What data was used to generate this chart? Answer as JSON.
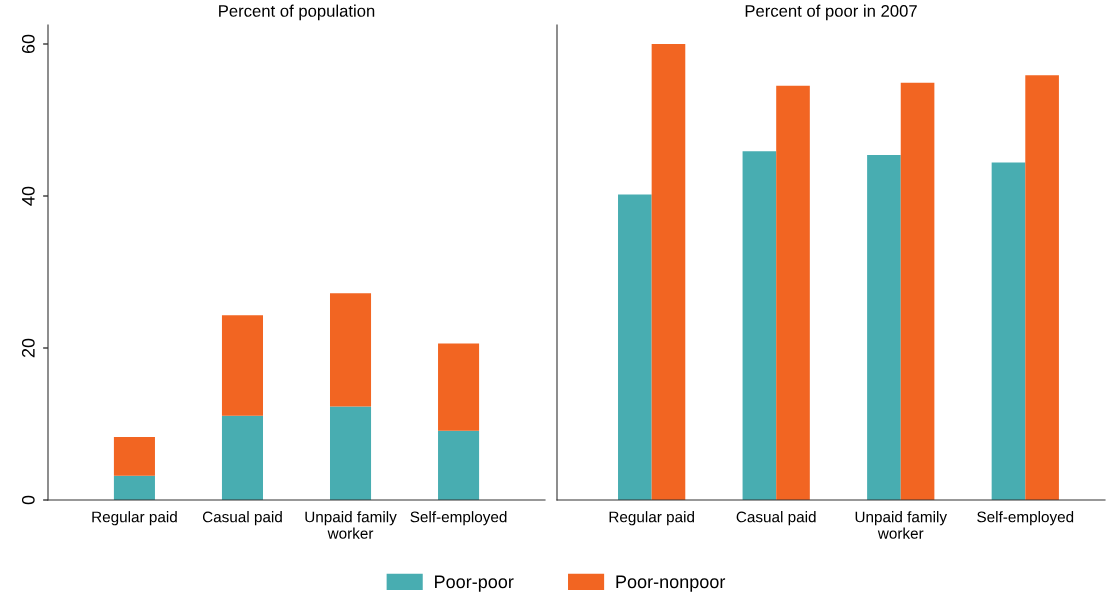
{
  "chart_data": [
    {
      "type": "bar",
      "title": "Percent of population",
      "stacked": true,
      "categories": [
        "Regular paid",
        "Casual paid",
        "Unpaid family\nworker",
        "Self-employed"
      ],
      "series": [
        {
          "name": "Poor-poor",
          "color": "#48adb1",
          "values": [
            3.2,
            11.1,
            12.3,
            9.1
          ]
        },
        {
          "name": "Poor-nonpoor",
          "color": "#f26522",
          "values": [
            5.1,
            13.2,
            14.9,
            11.5
          ]
        }
      ],
      "ylim": [
        0,
        62.5
      ],
      "yticks": [
        0,
        20,
        40,
        60
      ],
      "grid": false,
      "legend": "bottom"
    },
    {
      "type": "bar",
      "title": "Percent of poor in 2007",
      "categories": [
        "Regular paid",
        "Casual paid",
        "Unpaid family\nworker",
        "Self-employed"
      ],
      "series": [
        {
          "color": "#48adb1",
          "values": [
            40.2,
            45.9,
            45.4,
            44.4
          ]
        },
        {
          "color": "#f26522",
          "values": [
            60.0,
            54.5,
            54.9,
            55.9
          ]
        }
      ],
      "ylim": [
        0,
        62.5
      ],
      "yticks": [
        0,
        20,
        40,
        60
      ],
      "tick_labels": "x",
      "grid": false
    }
  ]
}
